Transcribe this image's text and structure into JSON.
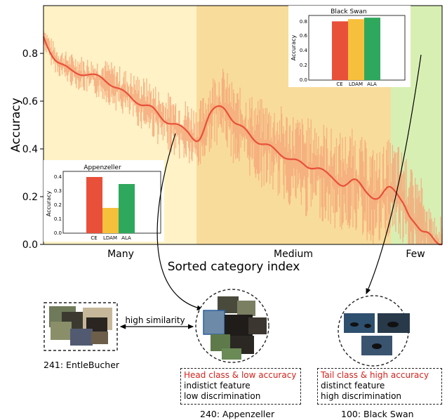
{
  "chart_data": {
    "type": "line",
    "xlabel": "Sorted category index",
    "ylabel": "Accuracy",
    "ylim": [
      0,
      1.0
    ],
    "yticks": [
      "0.0",
      "0.2",
      "0.4",
      "0.6",
      "0.8"
    ],
    "region_labels": [
      "Many",
      "Medium",
      "Few"
    ],
    "region_colors": [
      "#fff2c6",
      "#f8dc9c",
      "#d8efb4"
    ],
    "smoothed_series": {
      "x": [
        0,
        0.03,
        0.06,
        0.09,
        0.12,
        0.15,
        0.18,
        0.21,
        0.24,
        0.27,
        0.3,
        0.33,
        0.36,
        0.39,
        0.42,
        0.45,
        0.48,
        0.51,
        0.54,
        0.57,
        0.6,
        0.63,
        0.66,
        0.69,
        0.72,
        0.75,
        0.78,
        0.81,
        0.84,
        0.87,
        0.9,
        0.92,
        0.94,
        0.96,
        0.98,
        1.0
      ],
      "y": [
        0.87,
        0.78,
        0.74,
        0.72,
        0.7,
        0.69,
        0.66,
        0.63,
        0.6,
        0.57,
        0.52,
        0.5,
        0.47,
        0.45,
        0.55,
        0.58,
        0.5,
        0.47,
        0.43,
        0.41,
        0.38,
        0.35,
        0.32,
        0.32,
        0.28,
        0.26,
        0.27,
        0.22,
        0.19,
        0.23,
        0.19,
        0.11,
        0.08,
        0.05,
        0.01,
        0.0
      ],
      "color": "#e8503a"
    },
    "raw_series_color": "#f4a97a",
    "insets": [
      {
        "title": "Appenzeller",
        "ylabel": "Accuracy",
        "yticks": [
          "0.0",
          "0.1",
          "0.2",
          "0.3",
          "0.4"
        ],
        "ylim": [
          0,
          0.44
        ],
        "categories": [
          "CE",
          "LDAM",
          "ALA"
        ],
        "values": [
          0.4,
          0.18,
          0.35
        ],
        "colors": [
          "#e8503a",
          "#f7c03c",
          "#2ea85c"
        ]
      },
      {
        "title": "Black Swan",
        "ylabel": "Accuracy",
        "yticks": [
          "0.0",
          "0.2",
          "0.4",
          "0.6",
          "0.8"
        ],
        "ylim": [
          0,
          0.88
        ],
        "categories": [
          "CE",
          "LDAM",
          "ALA"
        ],
        "values": [
          0.8,
          0.83,
          0.85
        ],
        "colors": [
          "#e8503a",
          "#f7c03c",
          "#2ea85c"
        ]
      }
    ]
  },
  "diagram": {
    "similarity_label": "high similarity",
    "left_caption": "241: EntleBucher",
    "mid_caption": "240: Appenzeller",
    "right_caption": "100: Black Swan",
    "mid_box": {
      "line1": "Head class & low accuracy",
      "line2": "indistict feature",
      "line3": "low discrimination"
    },
    "right_box": {
      "line1": "Tail class & high accuracy",
      "line2": "distinct feature",
      "line3": "high discrimination"
    }
  }
}
